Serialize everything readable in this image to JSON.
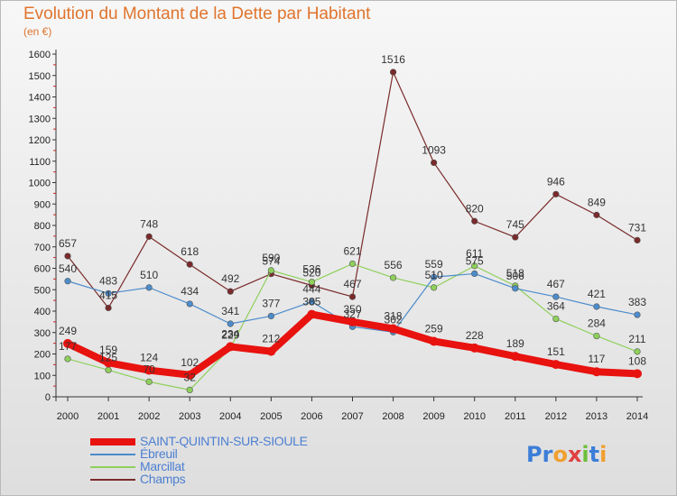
{
  "title": "Evolution du Montant de la Dette par Habitant",
  "subtitle": "(en €)",
  "logo": {
    "text": "Proxiti",
    "letters": [
      {
        "ch": "P",
        "color": "#3c7dd8"
      },
      {
        "ch": "r",
        "color": "#3c7dd8"
      },
      {
        "ch": "o",
        "color": "#f0a030"
      },
      {
        "ch": "x",
        "color": "#e04040"
      },
      {
        "ch": "i",
        "color": "#6cbf3c"
      },
      {
        "ch": "t",
        "color": "#3c7dd8"
      },
      {
        "ch": "i",
        "color": "#f0a030"
      }
    ]
  },
  "chart_data": {
    "type": "line",
    "title": "Evolution du Montant de la Dette par Habitant",
    "subtitle": "(en €)",
    "x": [
      "2000",
      "2001",
      "2002",
      "2003",
      "2004",
      "2005",
      "2006",
      "2007",
      "2008",
      "2009",
      "2010",
      "2011",
      "2012",
      "2013",
      "2014"
    ],
    "ylim": [
      0,
      1600
    ],
    "yticks": [
      0,
      100,
      200,
      300,
      400,
      500,
      600,
      700,
      800,
      900,
      1000,
      1100,
      1200,
      1300,
      1400,
      1500,
      1600
    ],
    "grid": false,
    "legend_position": "bottom-left",
    "series": [
      {
        "name": "SAINT-QUINTIN-SUR-SIOULE",
        "color": "#e8120f",
        "width": 8,
        "values": [
          249,
          159,
          124,
          102,
          234,
          212,
          385,
          350,
          318,
          259,
          228,
          189,
          151,
          117,
          108
        ],
        "labels": [
          "249",
          "159",
          "124",
          "102",
          "234",
          "212",
          "385",
          "350",
          "318",
          "259",
          "228",
          "189",
          "151",
          "117",
          "108"
        ]
      },
      {
        "name": "Ébreuil",
        "color": "#4c8ccc",
        "width": 1.2,
        "values": [
          540,
          483,
          510,
          434,
          341,
          377,
          444,
          327,
          302,
          559,
          575,
          506,
          467,
          421,
          383
        ],
        "labels": [
          "540",
          "483",
          "510",
          "434",
          "341",
          "377",
          "444",
          "327",
          "302",
          "559",
          "575",
          "506",
          "467",
          "421",
          "383"
        ]
      },
      {
        "name": "Marcillat",
        "color": "#8fd05c",
        "width": 1.2,
        "values": [
          177,
          125,
          70,
          32,
          229,
          590,
          536,
          621,
          556,
          510,
          611,
          518,
          364,
          284,
          211
        ],
        "labels": [
          "177",
          "125",
          "70",
          "32",
          "229",
          "590",
          "536",
          "621",
          "556",
          "510",
          "611",
          "518",
          "364",
          "284",
          "211"
        ]
      },
      {
        "name": "Champs",
        "color": "#7a2a2a",
        "width": 1.2,
        "values": [
          657,
          415,
          748,
          618,
          492,
          574,
          520,
          467,
          1516,
          1093,
          820,
          745,
          946,
          849,
          731
        ],
        "labels": [
          "657",
          "415",
          "748",
          "618",
          "492",
          "574",
          "520",
          "467",
          "1516",
          "1093",
          "820",
          "745",
          "946",
          "849",
          "731"
        ]
      }
    ]
  }
}
